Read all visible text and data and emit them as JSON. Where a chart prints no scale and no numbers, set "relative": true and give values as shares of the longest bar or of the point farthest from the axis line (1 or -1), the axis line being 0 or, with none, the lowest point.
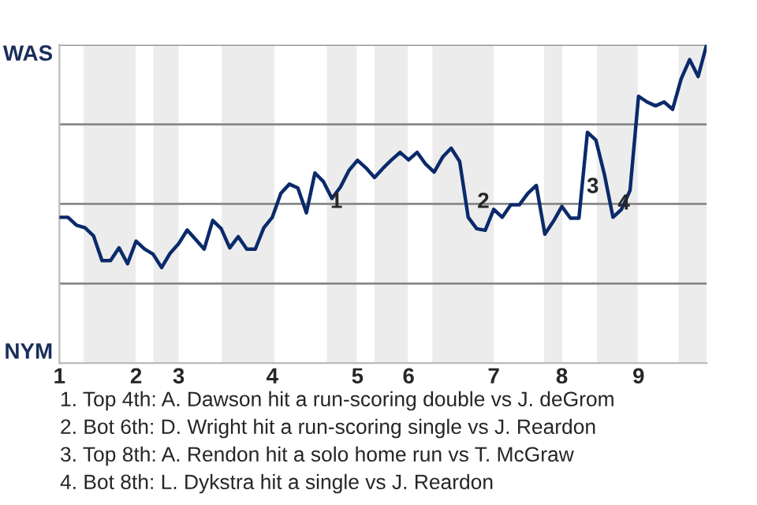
{
  "chart_data": {
    "type": "line",
    "relative": true,
    "categories": [
      "1",
      null,
      null,
      null,
      null,
      null,
      null,
      null,
      null,
      "2",
      null,
      null,
      null,
      null,
      "3",
      null,
      null,
      null,
      null,
      null,
      null,
      null,
      null,
      null,
      null,
      "4",
      null,
      null,
      null,
      null,
      null,
      null,
      null,
      null,
      null,
      "5",
      null,
      null,
      null,
      null,
      null,
      "6",
      null,
      null,
      null,
      null,
      null,
      null,
      null,
      null,
      null,
      "7",
      null,
      null,
      null,
      null,
      null,
      null,
      null,
      "8",
      null,
      null,
      null,
      null,
      null,
      null,
      null,
      null,
      "9",
      null,
      null,
      null,
      null,
      null,
      null,
      null,
      null
    ],
    "series": [
      {
        "color": "#0b2a6b",
        "values": [
          0.458,
          0.458,
          0.433,
          0.425,
          0.4,
          0.322,
          0.322,
          0.362,
          0.312,
          0.383,
          0.358,
          0.342,
          0.3,
          0.345,
          0.375,
          0.418,
          0.388,
          0.358,
          0.448,
          0.422,
          0.362,
          0.397,
          0.358,
          0.358,
          0.425,
          0.458,
          0.533,
          0.562,
          0.55,
          0.472,
          0.597,
          0.57,
          0.517,
          0.553,
          0.605,
          0.637,
          0.613,
          0.583,
          0.612,
          0.638,
          0.662,
          0.638,
          0.662,
          0.625,
          0.6,
          0.647,
          0.675,
          0.633,
          0.458,
          0.422,
          0.417,
          0.483,
          0.458,
          0.497,
          0.497,
          0.533,
          0.558,
          0.405,
          0.445,
          0.492,
          0.455,
          0.455,
          0.725,
          0.7,
          0.592,
          0.458,
          0.483,
          0.542,
          0.838,
          0.82,
          0.808,
          0.82,
          0.797,
          0.892,
          0.953,
          0.9,
          1.0
        ]
      }
    ],
    "legend": false,
    "marker": "none",
    "line_style": "solid",
    "ref_lines": [
      {
        "axis": "y",
        "value": 0.25,
        "color": "#888888"
      },
      {
        "axis": "y",
        "value": 0.5,
        "color": "#888888"
      },
      {
        "axis": "y",
        "value": 0.75,
        "color": "#888888"
      },
      {
        "axis": "y",
        "value": 1,
        "color": "#888888"
      }
    ],
    "annotations": [
      "WAS",
      "NYM",
      "1",
      "2",
      "3",
      "4",
      "1. Top 4th: A. Dawson hit a run-scoring double vs J. deGrom",
      "2. Bot 6th: D. Wright hit a run-scoring single vs J. Reardon",
      "3. Top 8th: A. Rendon hit a solo home run vs T. McGraw",
      "4. Bot 8th: L. Dykstra hit a single vs J. Reardon"
    ]
  }
}
